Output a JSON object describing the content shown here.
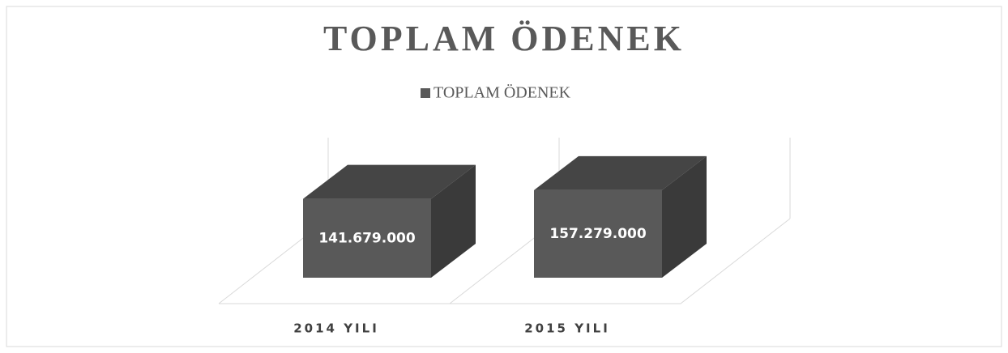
{
  "chart_data": {
    "type": "bar3d",
    "title": "TOPLAM ÖDENEK",
    "categories": [
      "2014 YILI",
      "2015 YILI"
    ],
    "series": [
      {
        "name": "TOPLAM ÖDENEK",
        "color": "#595959",
        "values": [
          141679000,
          157279000
        ],
        "value_labels": [
          "141.679.000",
          "157.279.000"
        ]
      }
    ],
    "ylim": [
      0,
      160000000
    ],
    "legend": "top"
  }
}
